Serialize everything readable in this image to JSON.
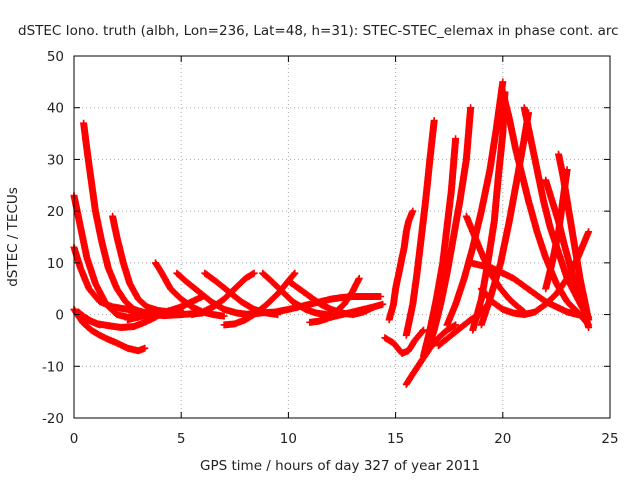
{
  "chart_data": {
    "type": "scatter",
    "title": "dSTEC Iono. truth (albh, Lon=236, Lat=48, h=31): STEC-STEC_elemax in phase cont. arc",
    "xlabel": "GPS time / hours of day 327 of year 2011",
    "ylabel": "dSTEC  / TECUs",
    "xlim": [
      0,
      25
    ],
    "ylim": [
      -20,
      50
    ],
    "xticks": [
      0,
      5,
      10,
      15,
      20,
      25
    ],
    "yticks": [
      -20,
      -10,
      0,
      10,
      20,
      30,
      40,
      50
    ],
    "grid": true,
    "marker": "+",
    "color": "#ff0000",
    "series": [
      {
        "x": [
          0.0,
          0.3,
          0.6,
          1.0,
          1.5,
          2.0,
          2.5,
          3.0,
          3.4,
          3.6
        ],
        "y": [
          23.0,
          17.0,
          11.0,
          6.0,
          2.0,
          0.0,
          -0.5,
          -0.3,
          0.0,
          0.5
        ]
      },
      {
        "x": [
          0.0,
          0.3,
          0.7,
          1.2,
          1.8,
          2.5,
          3.2
        ],
        "y": [
          13.0,
          9.0,
          5.0,
          2.5,
          1.5,
          1.0,
          0.5
        ]
      },
      {
        "x": [
          0.45,
          0.6,
          0.8,
          1.0,
          1.3,
          1.6,
          2.0,
          2.4,
          2.8,
          3.2,
          3.7,
          4.2,
          5.0,
          6.0
        ],
        "y": [
          37.0,
          32.0,
          26.0,
          20.0,
          14.0,
          9.0,
          5.0,
          2.5,
          1.0,
          0.5,
          0.0,
          -0.2,
          0.0,
          0.3
        ]
      },
      {
        "x": [
          0.0,
          0.4,
          0.8,
          1.2,
          1.6,
          2.0,
          2.5,
          3.0,
          3.3
        ],
        "y": [
          1.0,
          -1.5,
          -3.0,
          -4.0,
          -4.8,
          -5.5,
          -6.5,
          -7.0,
          -6.5
        ]
      },
      {
        "x": [
          0.2,
          0.6,
          1.1,
          1.7,
          2.2,
          2.8,
          3.3,
          3.8,
          4.1
        ],
        "y": [
          0.0,
          -1.0,
          -1.8,
          -2.2,
          -2.5,
          -2.3,
          -1.5,
          -0.5,
          0.3
        ]
      },
      {
        "x": [
          1.8,
          2.0,
          2.3,
          2.6,
          3.0,
          3.4,
          3.9,
          4.5,
          5.1
        ],
        "y": [
          19.0,
          15.0,
          10.0,
          6.0,
          3.0,
          1.5,
          0.8,
          0.5,
          0.3
        ]
      },
      {
        "x": [
          3.8,
          4.1,
          4.5,
          5.0,
          5.5,
          6.0,
          6.5,
          7.0
        ],
        "y": [
          10.0,
          8.0,
          5.0,
          3.0,
          1.5,
          0.5,
          0.0,
          -0.3
        ]
      },
      {
        "x": [
          0.2,
          0.5,
          0.9,
          1.2
        ],
        "y": [
          0.5,
          -0.5,
          -1.5,
          -2.0
        ]
      },
      {
        "x": [
          2.5,
          3.0,
          3.5,
          4.0,
          4.5,
          5.0,
          5.5,
          6.0
        ],
        "y": [
          -1.0,
          -0.5,
          0.0,
          0.3,
          0.8,
          1.5,
          2.5,
          3.5
        ]
      },
      {
        "x": [
          4.8,
          5.2,
          5.8,
          6.4,
          7.0,
          7.6,
          8.2
        ],
        "y": [
          8.0,
          6.5,
          4.5,
          2.5,
          1.0,
          0.3,
          0.0
        ]
      },
      {
        "x": [
          6.1,
          6.6,
          7.2,
          7.8,
          8.4,
          9.0,
          9.5
        ],
        "y": [
          8.0,
          6.5,
          4.5,
          2.5,
          1.0,
          0.3,
          0.0
        ]
      },
      {
        "x": [
          7.0,
          7.5,
          8.0,
          8.5,
          9.0,
          9.5,
          10.0,
          10.3
        ],
        "y": [
          -2.0,
          -1.8,
          -1.0,
          0.3,
          2.0,
          4.0,
          6.5,
          8.0
        ]
      },
      {
        "x": [
          5.5,
          6.0,
          6.5,
          7.0,
          7.5,
          8.0,
          8.4
        ],
        "y": [
          0.0,
          0.5,
          1.5,
          3.0,
          5.0,
          7.0,
          8.0
        ]
      },
      {
        "x": [
          8.8,
          9.2,
          9.7,
          10.2,
          10.8,
          11.3,
          11.8,
          12.2
        ],
        "y": [
          8.0,
          6.5,
          4.5,
          2.5,
          1.0,
          0.3,
          0.0,
          -0.2
        ]
      },
      {
        "x": [
          10.0,
          10.5,
          11.0,
          11.5,
          12.0,
          12.5,
          13.0,
          13.5,
          14.0
        ],
        "y": [
          6.5,
          5.0,
          3.5,
          2.0,
          1.0,
          0.3,
          0.0,
          0.5,
          1.5
        ]
      },
      {
        "x": [
          11.0,
          11.4,
          11.8,
          12.2,
          12.6,
          13.0,
          13.3
        ],
        "y": [
          -1.5,
          -1.3,
          -0.8,
          0.5,
          2.0,
          4.5,
          7.0
        ]
      },
      {
        "x": [
          8.0,
          8.7,
          9.4,
          10.0,
          10.5,
          11.0,
          11.5,
          12.0,
          12.5,
          13.0,
          13.5,
          14.3
        ],
        "y": [
          0.0,
          0.3,
          0.5,
          1.0,
          1.5,
          2.0,
          2.5,
          3.0,
          3.3,
          3.5,
          3.5,
          3.5
        ]
      },
      {
        "x": [
          11.5,
          12.0,
          12.5,
          13.0,
          13.5,
          14.0,
          14.4
        ],
        "y": [
          -1.0,
          -0.5,
          0.0,
          0.5,
          1.0,
          1.5,
          2.0
        ]
      },
      {
        "x": [
          14.5,
          14.9,
          15.3,
          15.6,
          15.9,
          16.3
        ],
        "y": [
          -4.5,
          -5.5,
          -7.5,
          -7.0,
          -5.0,
          -3.0
        ]
      },
      {
        "x": [
          14.7,
          14.9,
          15.0,
          15.2,
          15.4,
          15.5,
          15.6,
          15.8
        ],
        "y": [
          -1.0,
          2.0,
          5.0,
          9.0,
          13.0,
          16.0,
          18.0,
          20.0
        ]
      },
      {
        "x": [
          15.5,
          15.8,
          16.2,
          16.6,
          17.0,
          17.4,
          17.8
        ],
        "y": [
          -13.5,
          -11.5,
          -9.0,
          -6.5,
          -4.5,
          -3.0,
          -2.0
        ]
      },
      {
        "x": [
          15.5,
          15.8,
          16.0,
          16.2,
          16.4,
          16.6,
          16.8
        ],
        "y": [
          -4.0,
          2.0,
          8.0,
          15.0,
          22.0,
          30.0,
          37.5
        ]
      },
      {
        "x": [
          16.3,
          16.6,
          16.9,
          17.2,
          17.4,
          17.6,
          17.8
        ],
        "y": [
          -8.0,
          -3.0,
          3.0,
          10.0,
          17.0,
          24.0,
          34.0
        ]
      },
      {
        "x": [
          16.5,
          16.8,
          17.1,
          17.4,
          17.7,
          18.0,
          18.3,
          18.5
        ],
        "y": [
          -7.0,
          -3.0,
          2.0,
          8.0,
          15.0,
          22.0,
          30.0,
          40.0
        ]
      },
      {
        "x": [
          17.0,
          17.3,
          17.6,
          17.9,
          18.2,
          18.5,
          18.9,
          19.2
        ],
        "y": [
          -6.0,
          -5.0,
          -4.0,
          -3.0,
          -2.0,
          -1.0,
          0.0,
          1.5
        ]
      },
      {
        "x": [
          18.3,
          18.7,
          19.1,
          19.5,
          19.9,
          20.3,
          20.7,
          21.0
        ],
        "y": [
          19.0,
          15.0,
          11.0,
          7.5,
          5.0,
          3.0,
          1.5,
          0.5
        ]
      },
      {
        "x": [
          17.4,
          17.8,
          18.2,
          18.6,
          19.0,
          19.4,
          19.7,
          20.0
        ],
        "y": [
          -2.0,
          2.0,
          7.0,
          13.0,
          20.0,
          28.0,
          36.0,
          45.0
        ]
      },
      {
        "x": [
          18.6,
          19.0,
          19.3,
          19.6,
          19.8,
          20.0,
          20.1
        ],
        "y": [
          -3.0,
          3.0,
          10.0,
          18.0,
          27.0,
          35.0,
          43.0
        ]
      },
      {
        "x": [
          20.0,
          20.3,
          20.6,
          20.9,
          21.2,
          21.6,
          22.0,
          22.5,
          23.0,
          23.6,
          24.0
        ],
        "y": [
          43.0,
          38.0,
          32.0,
          27.0,
          22.0,
          16.0,
          11.0,
          6.0,
          2.5,
          0.0,
          -2.0
        ]
      },
      {
        "x": [
          19.0,
          19.4,
          19.9,
          20.3,
          20.7,
          21.0,
          21.2
        ],
        "y": [
          -2.0,
          3.0,
          10.0,
          18.0,
          27.0,
          34.0,
          39.0
        ]
      },
      {
        "x": [
          21.0,
          21.3,
          21.6,
          21.9,
          22.2,
          22.6,
          23.0,
          23.5,
          24.0
        ],
        "y": [
          40.0,
          34.0,
          28.0,
          22.0,
          17.0,
          12.0,
          7.0,
          3.0,
          -1.0
        ]
      },
      {
        "x": [
          19.0,
          19.5,
          20.0,
          20.5,
          21.0,
          21.5,
          22.0,
          22.5,
          23.0,
          23.5,
          24.0
        ],
        "y": [
          5.0,
          2.5,
          1.0,
          0.3,
          0.0,
          0.5,
          2.0,
          4.0,
          7.0,
          11.0,
          16.0
        ]
      },
      {
        "x": [
          18.5,
          19.0,
          19.5,
          20.0,
          20.5,
          21.0,
          21.5,
          22.0,
          22.5,
          23.0,
          23.5,
          24.0
        ],
        "y": [
          10.0,
          9.5,
          9.0,
          8.0,
          7.0,
          5.5,
          4.0,
          2.5,
          1.5,
          0.5,
          0.0,
          -0.5
        ]
      },
      {
        "x": [
          22.0,
          22.3,
          22.6,
          22.9,
          23.2,
          23.5,
          23.8,
          24.0
        ],
        "y": [
          26.0,
          22.0,
          18.0,
          13.0,
          8.5,
          4.5,
          1.0,
          -2.5
        ]
      },
      {
        "x": [
          22.6,
          22.8,
          23.0,
          23.2,
          23.4,
          23.6,
          23.8,
          24.0
        ],
        "y": [
          31.0,
          27.0,
          22.0,
          17.0,
          12.0,
          7.0,
          3.0,
          -1.0
        ]
      },
      {
        "x": [
          22.0,
          22.3,
          22.6,
          22.8,
          23.0
        ],
        "y": [
          5.0,
          10.0,
          16.0,
          22.0,
          28.0
        ]
      }
    ]
  }
}
